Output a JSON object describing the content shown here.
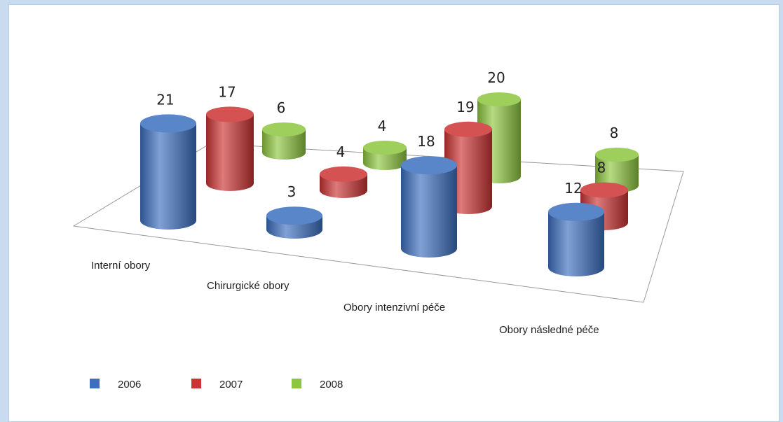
{
  "chart_data": {
    "type": "bar3d",
    "categories": [
      "Interní obory",
      "Chirurgické obory",
      "Obory intenzivní péče",
      "Obory následné péče"
    ],
    "series": [
      {
        "name": "2006",
        "color": "#3c6fbf",
        "values": [
          21,
          3,
          18,
          12
        ]
      },
      {
        "name": "2007",
        "color": "#cc3333",
        "values": [
          17,
          4,
          19,
          8
        ]
      },
      {
        "name": "2008",
        "color": "#8dc63f",
        "values": [
          6,
          4,
          20,
          8
        ]
      }
    ]
  }
}
